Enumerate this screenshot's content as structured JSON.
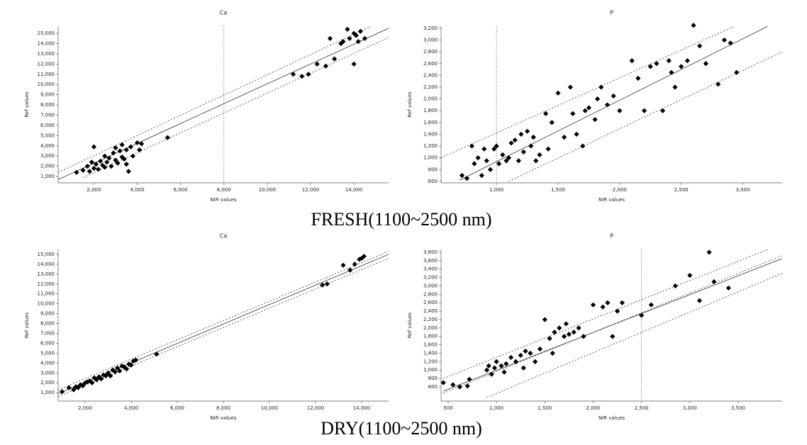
{
  "captions": [
    "FRESH(1100~2500  nm)",
    "DRY(1100~2500  nm)"
  ],
  "chart_data": [
    {
      "type": "scatter",
      "title": "Ca",
      "x_label": "NIR values",
      "y_label": "Ref values",
      "color": "#000000",
      "xlim": [
        350,
        15600
      ],
      "ylim": [
        380,
        15700
      ],
      "vline": 8000,
      "xticks": [
        {
          "value": 2000,
          "label": "2,000"
        },
        {
          "value": 4000,
          "label": "4,000"
        },
        {
          "value": 6000,
          "label": "6,000"
        },
        {
          "value": 8000,
          "label": "8,000"
        },
        {
          "value": 10000,
          "label": "10,000"
        },
        {
          "value": 12000,
          "label": "12,000"
        },
        {
          "value": 14000,
          "label": "14,000"
        }
      ],
      "yticks": [
        {
          "value": 1000,
          "label": "1,000"
        },
        {
          "value": 2000,
          "label": "2,000"
        },
        {
          "value": 3000,
          "label": "3,000"
        },
        {
          "value": 4000,
          "label": "4,000"
        },
        {
          "value": 5000,
          "label": "5,000"
        },
        {
          "value": 6000,
          "label": "6,000"
        },
        {
          "value": 7000,
          "label": "7,000"
        },
        {
          "value": 8000,
          "label": "8,000"
        },
        {
          "value": 9000,
          "label": "9,000"
        },
        {
          "value": 10000,
          "label": "10,000"
        },
        {
          "value": 11000,
          "label": "11,000"
        },
        {
          "value": 12000,
          "label": "12,000"
        },
        {
          "value": 13000,
          "label": "13,000"
        },
        {
          "value": 14000,
          "label": "14,000"
        },
        {
          "value": 15000,
          "label": "15,000"
        }
      ],
      "x": [
        1200,
        1500,
        1700,
        1800,
        1900,
        2000,
        2000,
        2100,
        2200,
        2300,
        2400,
        2500,
        2500,
        2600,
        2700,
        2800,
        2900,
        3000,
        3000,
        3100,
        3200,
        3300,
        3300,
        3400,
        3500,
        3500,
        3600,
        3700,
        3800,
        4000,
        4100,
        4200,
        5400,
        11200,
        11600,
        11900,
        12300,
        12700,
        13100,
        13400,
        13500,
        13700,
        13800,
        14000,
        14100,
        14200,
        14300,
        14500,
        12900,
        14000
      ],
      "y": [
        1400,
        1600,
        2000,
        1500,
        2400,
        1800,
        3900,
        2200,
        1700,
        2500,
        2100,
        1900,
        3000,
        2400,
        2800,
        2000,
        3300,
        2600,
        3800,
        2300,
        3500,
        2900,
        4100,
        2700,
        3600,
        2200,
        1500,
        3900,
        3000,
        4300,
        3600,
        4200,
        4800,
        11000,
        10800,
        11000,
        12000,
        11800,
        12500,
        14000,
        14200,
        15400,
        14500,
        15000,
        14800,
        14200,
        15200,
        14500,
        14500,
        12000
      ],
      "fit_lines": [
        {
          "x": [
            350,
            15600
          ],
          "y": [
            700,
            15500
          ]
        },
        {
          "x": [
            350,
            14800
          ],
          "y": [
            1400,
            15700
          ]
        },
        {
          "x": [
            1500,
            15600
          ],
          "y": [
            900,
            14600
          ]
        }
      ]
    },
    {
      "type": "scatter",
      "title": "P",
      "x_label": "NIR values",
      "y_label": "Ref values",
      "color": "#000000",
      "xlim": [
        550,
        3320
      ],
      "ylim": [
        575,
        3235
      ],
      "vline": 1000,
      "xticks": [
        {
          "value": 1000,
          "label": "1,000"
        },
        {
          "value": 1500,
          "label": "1,500"
        },
        {
          "value": 2000,
          "label": "2,000"
        },
        {
          "value": 2500,
          "label": "2,500"
        },
        {
          "value": 3000,
          "label": "3,000"
        }
      ],
      "yticks": [
        600,
        800,
        {
          "value": 1000,
          "label": "1,000"
        },
        {
          "value": 1200,
          "label": "1,200"
        },
        {
          "value": 1400,
          "label": "1,400"
        },
        {
          "value": 1600,
          "label": "1,600"
        },
        {
          "value": 1800,
          "label": "1,800"
        },
        {
          "value": 2000,
          "label": "2,000"
        },
        {
          "value": 2200,
          "label": "2,200"
        },
        {
          "value": 2400,
          "label": "2,400"
        },
        {
          "value": 2600,
          "label": "2,600"
        },
        {
          "value": 2800,
          "label": "2,800"
        },
        {
          "value": 3000,
          "label": "3,000"
        },
        {
          "value": 3200,
          "label": "3,200"
        }
      ],
      "x": [
        720,
        760,
        800,
        820,
        850,
        880,
        900,
        920,
        950,
        980,
        1000,
        1020,
        1050,
        1080,
        1100,
        1120,
        1150,
        1180,
        1200,
        1220,
        1250,
        1280,
        1300,
        1320,
        1350,
        1400,
        1420,
        1450,
        1500,
        1550,
        1600,
        1620,
        1650,
        1700,
        1720,
        1750,
        1800,
        1820,
        1850,
        1900,
        1950,
        2000,
        2100,
        2150,
        2200,
        2250,
        2300,
        2350,
        2400,
        2420,
        2450,
        2500,
        2550,
        2600,
        2650,
        2700,
        2800,
        2850,
        2900,
        2950
      ],
      "y": [
        700,
        650,
        1200,
        900,
        1000,
        700,
        1150,
        950,
        800,
        1150,
        1200,
        900,
        1050,
        950,
        1000,
        1250,
        1300,
        950,
        1400,
        1100,
        1450,
        1200,
        1350,
        950,
        1050,
        1750,
        1150,
        1600,
        2100,
        1350,
        2200,
        1750,
        1400,
        1200,
        1800,
        1850,
        1650,
        2000,
        2200,
        1900,
        2050,
        1800,
        2650,
        2350,
        1800,
        2550,
        2600,
        1800,
        2650,
        2450,
        2200,
        2550,
        2650,
        3250,
        2900,
        2600,
        2250,
        3000,
        2950,
        2450
      ],
      "fit_lines": [
        {
          "x": [
            700,
            3200
          ],
          "y": [
            620,
            3230
          ]
        },
        {
          "x": [
            550,
            2950
          ],
          "y": [
            1000,
            3250
          ]
        },
        {
          "x": [
            1100,
            3320
          ],
          "y": [
            600,
            2800
          ]
        }
      ]
    },
    {
      "type": "scatter",
      "title": "Ca",
      "x_label": "NIR values",
      "y_label": "Ref values",
      "color": "#000000",
      "xlim": [
        830,
        15170
      ],
      "ylim": [
        150,
        15500
      ],
      "xticks": [
        {
          "value": 2000,
          "label": "2,000"
        },
        {
          "value": 4000,
          "label": "4,000"
        },
        {
          "value": 6000,
          "label": "6,000"
        },
        {
          "value": 8000,
          "label": "8,000"
        },
        {
          "value": 10000,
          "label": "10,000"
        },
        {
          "value": 12000,
          "label": "12,000"
        },
        {
          "value": 14000,
          "label": "14,000"
        }
      ],
      "yticks": [
        {
          "value": 1000,
          "label": "1,000"
        },
        {
          "value": 2000,
          "label": "2,000"
        },
        {
          "value": 3000,
          "label": "3,000"
        },
        {
          "value": 4000,
          "label": "4,000"
        },
        {
          "value": 5000,
          "label": "5,000"
        },
        {
          "value": 6000,
          "label": "6,000"
        },
        {
          "value": 7000,
          "label": "7,000"
        },
        {
          "value": 8000,
          "label": "8,000"
        },
        {
          "value": 9000,
          "label": "9,000"
        },
        {
          "value": 10000,
          "label": "10,000"
        },
        {
          "value": 11000,
          "label": "11,000"
        },
        {
          "value": 12000,
          "label": "12,000"
        },
        {
          "value": 13000,
          "label": "13,000"
        },
        {
          "value": 14000,
          "label": "14,000"
        },
        {
          "value": 15000,
          "label": "15,000"
        }
      ],
      "x": [
        1000,
        1300,
        1500,
        1600,
        1700,
        1800,
        1900,
        2000,
        2100,
        2200,
        2300,
        2400,
        2500,
        2600,
        2700,
        2800,
        2900,
        3000,
        3100,
        3200,
        3300,
        3400,
        3500,
        3600,
        3700,
        3800,
        3900,
        4000,
        4100,
        4200,
        5100,
        12300,
        12500,
        13200,
        13500,
        13700,
        13900,
        14000,
        14100
      ],
      "y": [
        1100,
        1500,
        1300,
        1600,
        1500,
        1800,
        1700,
        2000,
        2100,
        2200,
        2000,
        2500,
        2300,
        2600,
        2400,
        2800,
        2700,
        3000,
        2700,
        3300,
        3100,
        3500,
        3200,
        3700,
        3600,
        3400,
        3900,
        3800,
        4200,
        4300,
        4900,
        11900,
        12000,
        13900,
        13400,
        14000,
        14500,
        14600,
        14800
      ],
      "fit_lines": [
        {
          "x": [
            830,
            15170
          ],
          "y": [
            900,
            15000
          ]
        },
        {
          "x": [
            830,
            15170
          ],
          "y": [
            1300,
            15300
          ]
        },
        {
          "x": [
            830,
            15170
          ],
          "y": [
            600,
            14600
          ]
        }
      ]
    },
    {
      "type": "scatter",
      "title": "P",
      "x_label": "NIR values",
      "y_label": "Ref values",
      "color": "#000000",
      "xlim": [
        427,
        3955
      ],
      "ylim": [
        263,
        3867
      ],
      "vline": 2500,
      "xticks": [
        500,
        {
          "value": 1000,
          "label": "1,000"
        },
        {
          "value": 1500,
          "label": "1,500"
        },
        {
          "value": 2000,
          "label": "2,000"
        },
        {
          "value": 2500,
          "label": "2,500"
        },
        {
          "value": 3000,
          "label": "3,000"
        },
        {
          "value": 3500,
          "label": "3,500"
        }
      ],
      "yticks": [
        600,
        800,
        {
          "value": 1000,
          "label": "1,000"
        },
        {
          "value": 1200,
          "label": "1,200"
        },
        {
          "value": 1400,
          "label": "1,400"
        },
        {
          "value": 1600,
          "label": "1,600"
        },
        {
          "value": 1800,
          "label": "1,800"
        },
        {
          "value": 2000,
          "label": "2,000"
        },
        {
          "value": 2200,
          "label": "2,200"
        },
        {
          "value": 2400,
          "label": "2,400"
        },
        {
          "value": 2600,
          "label": "2,600"
        },
        {
          "value": 2800,
          "label": "2,800"
        },
        {
          "value": 3000,
          "label": "3,000"
        },
        {
          "value": 3200,
          "label": "3,200"
        },
        {
          "value": 3400,
          "label": "3,400"
        },
        {
          "value": 3600,
          "label": "3,600"
        },
        {
          "value": 3800,
          "label": "3,800"
        }
      ],
      "x": [
        450,
        550,
        620,
        700,
        720,
        900,
        920,
        950,
        980,
        1000,
        1050,
        1080,
        1100,
        1150,
        1200,
        1250,
        1280,
        1300,
        1350,
        1400,
        1450,
        1500,
        1550,
        1580,
        1600,
        1650,
        1700,
        1720,
        1750,
        1800,
        1850,
        1900,
        2000,
        2100,
        2150,
        2200,
        2250,
        2300,
        2500,
        2600,
        2850,
        3000,
        3100,
        3200,
        3250,
        3400
      ],
      "y": [
        700,
        650,
        600,
        620,
        780,
        1000,
        1100,
        900,
        1050,
        1200,
        1100,
        950,
        1150,
        1300,
        1200,
        1350,
        1050,
        1450,
        1400,
        1200,
        1500,
        2200,
        1750,
        1400,
        1900,
        2000,
        1800,
        2100,
        1850,
        1900,
        2000,
        1800,
        2550,
        2500,
        2600,
        1800,
        2400,
        2600,
        2300,
        2550,
        3000,
        3250,
        2650,
        3800,
        3100,
        2950
      ],
      "fit_lines": [
        {
          "x": [
            450,
            3955
          ],
          "y": [
            500,
            3650
          ]
        },
        {
          "x": [
            450,
            3955
          ],
          "y": [
            450,
            3720
          ]
        },
        {
          "x": [
            450,
            3955
          ],
          "y": [
            800,
            4000
          ]
        },
        {
          "x": [
            900,
            3955
          ],
          "y": [
            350,
            3300
          ]
        }
      ]
    }
  ]
}
